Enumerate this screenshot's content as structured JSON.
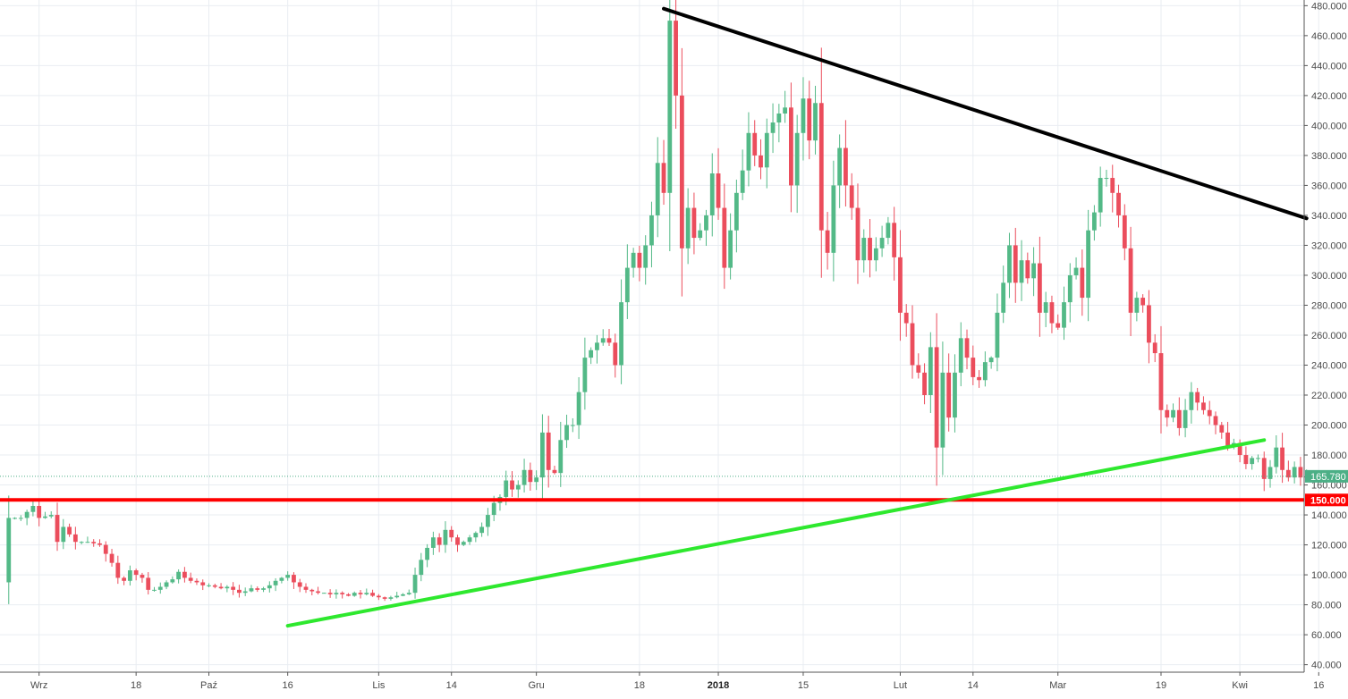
{
  "chart_data": {
    "type": "candlestick",
    "title": "",
    "xlabel": "",
    "ylabel": "",
    "ylim": [
      35,
      482
    ],
    "grid": true,
    "y_ticks": [
      40,
      60,
      80,
      100,
      120,
      140,
      160,
      180,
      200,
      220,
      240,
      260,
      280,
      300,
      320,
      340,
      360,
      380,
      400,
      420,
      440,
      460,
      480
    ],
    "y_tick_labels": [
      "40.000",
      "60.000",
      "80.000",
      "100.000",
      "120.000",
      "140.000",
      "160.000",
      "180.000",
      "200.000",
      "220.000",
      "240.000",
      "260.000",
      "280.000",
      "300.000",
      "320.000",
      "340.000",
      "360.000",
      "380.000",
      "400.000",
      "420.000",
      "440.000",
      "460.000",
      "480.000"
    ],
    "x_ticks": [
      {
        "bar": 6,
        "label": "Wrz",
        "bold": false
      },
      {
        "bar": 22,
        "label": "18",
        "bold": false
      },
      {
        "bar": 34,
        "label": "Paź",
        "bold": false
      },
      {
        "bar": 47,
        "label": "16",
        "bold": false
      },
      {
        "bar": 62,
        "label": "Lis",
        "bold": false
      },
      {
        "bar": 74,
        "label": "14",
        "bold": false
      },
      {
        "bar": 88,
        "label": "Gru",
        "bold": false
      },
      {
        "bar": 105,
        "label": "18",
        "bold": false
      },
      {
        "bar": 118,
        "label": "2018",
        "bold": true
      },
      {
        "bar": 132,
        "label": "15",
        "bold": false
      },
      {
        "bar": 148,
        "label": "Lut",
        "bold": false
      },
      {
        "bar": 160,
        "label": "14",
        "bold": false
      },
      {
        "bar": 174,
        "label": "Mar",
        "bold": false
      },
      {
        "bar": 191,
        "label": "19",
        "bold": false
      },
      {
        "bar": 204,
        "label": "Kwi",
        "bold": false
      },
      {
        "bar": 217,
        "label": "16",
        "bold": false
      }
    ],
    "bars_count": 213,
    "anchors": [
      [
        0,
        95
      ],
      [
        1,
        138
      ],
      [
        3,
        138
      ],
      [
        5,
        146
      ],
      [
        6,
        138
      ],
      [
        8,
        140
      ],
      [
        9,
        122
      ],
      [
        10,
        132
      ],
      [
        12,
        122
      ],
      [
        14,
        122
      ],
      [
        16,
        120
      ],
      [
        18,
        108
      ],
      [
        19,
        98
      ],
      [
        20,
        96
      ],
      [
        21,
        103
      ],
      [
        22,
        100
      ],
      [
        23,
        98
      ],
      [
        24,
        90
      ],
      [
        25,
        90
      ],
      [
        26,
        92
      ],
      [
        27,
        95
      ],
      [
        28,
        97
      ],
      [
        29,
        102
      ],
      [
        30,
        98
      ],
      [
        31,
        96
      ],
      [
        32,
        95
      ],
      [
        33,
        93
      ],
      [
        34,
        93
      ],
      [
        35,
        92
      ],
      [
        36,
        91
      ],
      [
        37,
        92
      ],
      [
        38,
        90
      ],
      [
        39,
        88
      ],
      [
        40,
        89
      ],
      [
        41,
        91
      ],
      [
        42,
        90
      ],
      [
        43,
        91
      ],
      [
        44,
        93
      ],
      [
        45,
        96
      ],
      [
        46,
        98
      ],
      [
        47,
        100
      ],
      [
        48,
        95
      ],
      [
        49,
        92
      ],
      [
        50,
        90
      ],
      [
        51,
        89
      ],
      [
        52,
        88
      ],
      [
        53,
        88
      ],
      [
        54,
        87
      ],
      [
        55,
        88
      ],
      [
        56,
        87
      ],
      [
        57,
        86
      ],
      [
        58,
        88
      ],
      [
        59,
        87
      ],
      [
        60,
        88
      ],
      [
        61,
        86
      ],
      [
        62,
        85
      ],
      [
        63,
        84
      ],
      [
        64,
        85
      ],
      [
        65,
        86
      ],
      [
        66,
        87
      ],
      [
        67,
        88
      ],
      [
        68,
        100
      ],
      [
        69,
        110
      ],
      [
        70,
        118
      ],
      [
        71,
        125
      ],
      [
        72,
        120
      ],
      [
        73,
        130
      ],
      [
        74,
        125
      ],
      [
        75,
        120
      ],
      [
        76,
        122
      ],
      [
        77,
        125
      ],
      [
        78,
        128
      ],
      [
        79,
        132
      ],
      [
        80,
        140
      ],
      [
        81,
        148
      ],
      [
        82,
        152
      ],
      [
        83,
        163
      ],
      [
        84,
        157
      ],
      [
        85,
        160
      ],
      [
        86,
        170
      ],
      [
        87,
        162
      ],
      [
        88,
        165
      ],
      [
        89,
        195
      ],
      [
        90,
        170
      ],
      [
        91,
        168
      ],
      [
        92,
        190
      ],
      [
        93,
        200
      ],
      [
        94,
        200
      ],
      [
        95,
        222
      ],
      [
        96,
        245
      ],
      [
        97,
        250
      ],
      [
        98,
        255
      ],
      [
        99,
        258
      ],
      [
        100,
        255
      ],
      [
        101,
        240
      ],
      [
        102,
        282
      ],
      [
        103,
        305
      ],
      [
        104,
        315
      ],
      [
        105,
        305
      ],
      [
        106,
        320
      ],
      [
        107,
        340
      ],
      [
        108,
        375
      ],
      [
        109,
        355
      ],
      [
        110,
        470
      ],
      [
        111,
        420
      ],
      [
        112,
        318
      ],
      [
        113,
        345
      ],
      [
        114,
        325
      ],
      [
        115,
        330
      ],
      [
        116,
        340
      ],
      [
        117,
        368
      ],
      [
        118,
        345
      ],
      [
        119,
        305
      ],
      [
        120,
        330
      ],
      [
        121,
        355
      ],
      [
        122,
        370
      ],
      [
        123,
        395
      ],
      [
        124,
        380
      ],
      [
        125,
        372
      ],
      [
        126,
        395
      ],
      [
        127,
        402
      ],
      [
        128,
        408
      ],
      [
        129,
        412
      ],
      [
        130,
        360
      ],
      [
        131,
        395
      ],
      [
        132,
        418
      ],
      [
        133,
        390
      ],
      [
        134,
        415
      ],
      [
        135,
        330
      ],
      [
        136,
        315
      ],
      [
        137,
        360
      ],
      [
        138,
        385
      ],
      [
        139,
        360
      ],
      [
        140,
        345
      ],
      [
        141,
        310
      ],
      [
        142,
        325
      ],
      [
        143,
        310
      ],
      [
        144,
        318
      ],
      [
        145,
        325
      ],
      [
        146,
        335
      ],
      [
        147,
        312
      ],
      [
        148,
        275
      ],
      [
        149,
        268
      ],
      [
        150,
        240
      ],
      [
        151,
        235
      ],
      [
        152,
        220
      ],
      [
        153,
        252
      ],
      [
        154,
        185
      ],
      [
        155,
        235
      ],
      [
        156,
        205
      ],
      [
        157,
        235
      ],
      [
        158,
        258
      ],
      [
        159,
        245
      ],
      [
        160,
        232
      ],
      [
        161,
        230
      ],
      [
        162,
        242
      ],
      [
        163,
        245
      ],
      [
        164,
        275
      ],
      [
        165,
        295
      ],
      [
        166,
        320
      ],
      [
        167,
        295
      ],
      [
        168,
        310
      ],
      [
        169,
        298
      ],
      [
        170,
        308
      ],
      [
        171,
        275
      ],
      [
        172,
        282
      ],
      [
        173,
        268
      ],
      [
        174,
        265
      ],
      [
        175,
        282
      ],
      [
        176,
        300
      ],
      [
        177,
        305
      ],
      [
        178,
        285
      ],
      [
        179,
        330
      ],
      [
        180,
        342
      ],
      [
        181,
        365
      ],
      [
        182,
        365
      ],
      [
        183,
        355
      ],
      [
        184,
        340
      ],
      [
        185,
        318
      ],
      [
        186,
        275
      ],
      [
        187,
        285
      ],
      [
        188,
        280
      ],
      [
        189,
        255
      ],
      [
        190,
        248
      ],
      [
        191,
        210
      ],
      [
        192,
        205
      ],
      [
        193,
        210
      ],
      [
        194,
        198
      ],
      [
        195,
        210
      ],
      [
        196,
        222
      ],
      [
        197,
        215
      ],
      [
        198,
        210
      ],
      [
        199,
        206
      ],
      [
        200,
        200
      ],
      [
        201,
        195
      ],
      [
        202,
        186
      ],
      [
        203,
        188
      ],
      [
        204,
        180
      ],
      [
        205,
        174
      ],
      [
        206,
        178
      ],
      [
        207,
        178
      ],
      [
        208,
        164
      ],
      [
        209,
        172
      ],
      [
        210,
        185
      ],
      [
        211,
        170
      ],
      [
        212,
        165
      ],
      [
        213,
        172
      ],
      [
        214,
        165
      ],
      [
        215,
        165.78
      ]
    ],
    "overlays": {
      "resistance_line": {
        "color": "#000000",
        "from": {
          "bar": 109,
          "price": 478
        },
        "to": {
          "bar": 215,
          "price": 338
        }
      },
      "support_line": {
        "color": "#2ee82e",
        "from": {
          "bar": 47,
          "price": 66
        },
        "to": {
          "bar": 208,
          "price": 190
        }
      },
      "horizontal_line": {
        "color": "#ff0000",
        "price": 150,
        "label": "150.000"
      },
      "last_price": {
        "price": 165.78,
        "label": "165.780",
        "color": "#4caf86"
      }
    },
    "colors": {
      "up": "#53b987",
      "down": "#eb4d5c",
      "grid": "#e9edf2",
      "axis_text": "#4a4a4a"
    }
  }
}
